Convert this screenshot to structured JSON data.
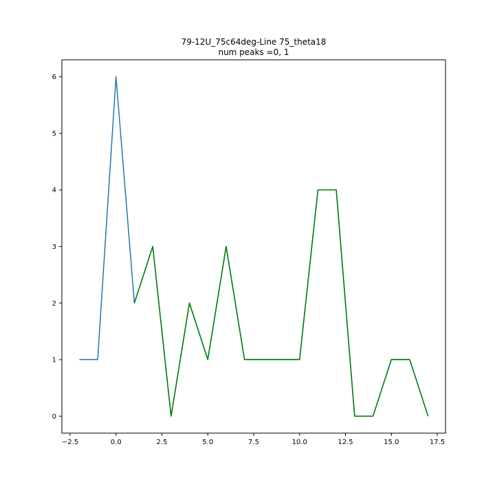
{
  "chart_data": {
    "type": "line",
    "title": "79-12U_75c64deg-Line 75_theta18",
    "subtitle": "num peaks =0, 1",
    "xlabel": "",
    "ylabel": "",
    "xlim": [
      -2.95,
      17.95
    ],
    "ylim": [
      -0.3,
      6.3
    ],
    "x_ticks": [
      -2.5,
      0.0,
      2.5,
      5.0,
      7.5,
      10.0,
      12.5,
      15.0,
      17.5
    ],
    "x_tick_labels": [
      "−2.5",
      "0.0",
      "2.5",
      "5.0",
      "7.5",
      "10.0",
      "12.5",
      "15.0",
      "17.5"
    ],
    "y_ticks": [
      0,
      1,
      2,
      3,
      4,
      5,
      6
    ],
    "y_tick_labels": [
      "0",
      "1",
      "2",
      "3",
      "4",
      "5",
      "6"
    ],
    "grid": false,
    "series": [
      {
        "color": "#1f77b4",
        "x": [
          -2,
          -1,
          0,
          1,
          2,
          3,
          4,
          5,
          6,
          7,
          8,
          9,
          10,
          11,
          12,
          13,
          14,
          15,
          16,
          17
        ],
        "y": [
          1,
          1,
          6,
          2,
          3,
          0,
          2,
          1,
          3,
          1,
          1,
          1,
          1,
          4,
          4,
          0,
          0,
          1,
          1,
          0
        ]
      },
      {
        "color": "#008000",
        "x": [
          1,
          2,
          3,
          4,
          5,
          6,
          7,
          8,
          9,
          10,
          11,
          12,
          13,
          14,
          15,
          16,
          17
        ],
        "y": [
          2,
          3,
          0,
          2,
          1,
          3,
          1,
          1,
          1,
          1,
          4,
          4,
          0,
          0,
          1,
          1,
          0
        ]
      }
    ]
  }
}
